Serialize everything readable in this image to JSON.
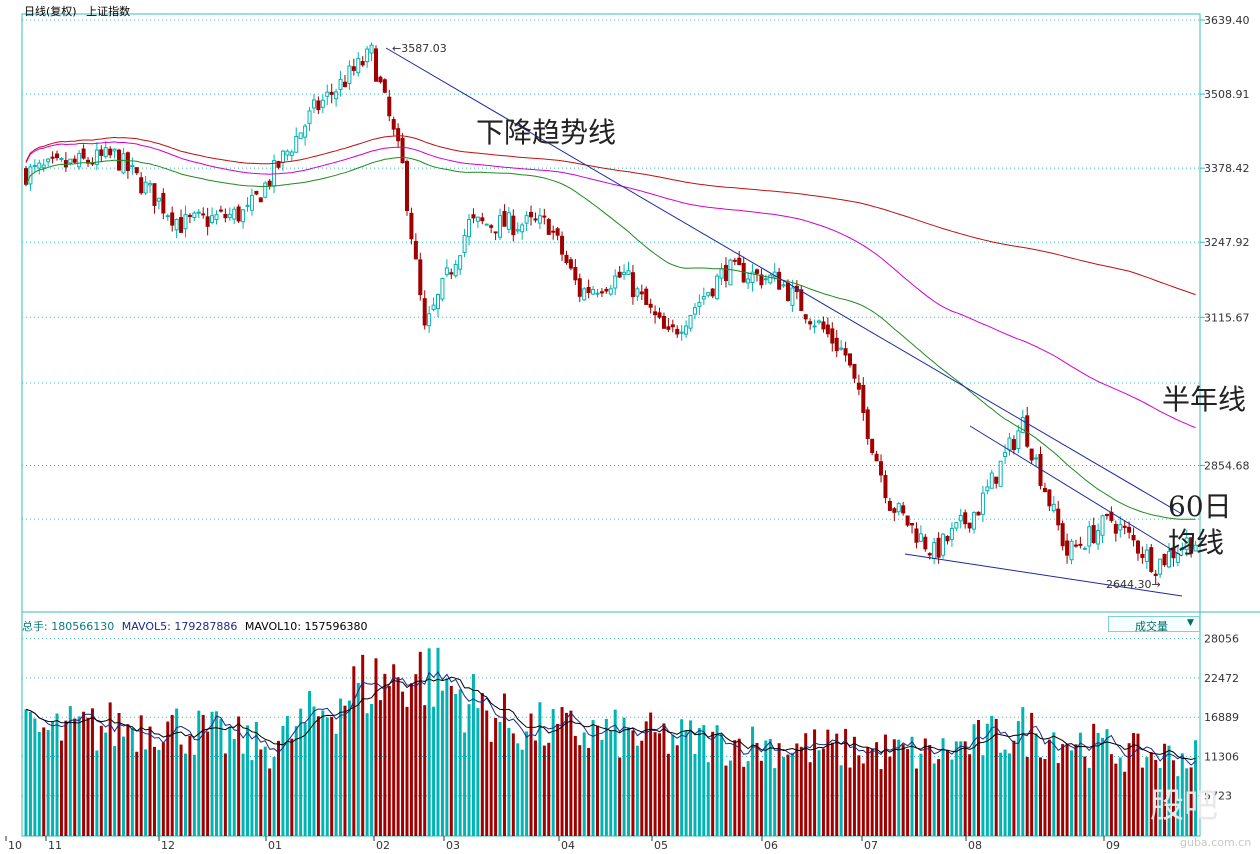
{
  "header": {
    "chart_kind": "日线(复权)",
    "index_name": "上证指数"
  },
  "volume_header": {
    "total_label": "总手",
    "total_value": "180566130",
    "mavol5_label": "MAVOL5",
    "mavol5_value": "179287886",
    "mavol10_label": "MAVOL10",
    "mavol10_value": "157596380"
  },
  "indicator_select": {
    "label": "成交量",
    "arrow": "▼"
  },
  "watermark": {
    "logo": "股吧",
    "site": "guba.com.cn"
  },
  "colors": {
    "up": "#00b4b4",
    "down": "#a00000",
    "ma_green": "#1f8a1f",
    "ma_magenta": "#d200d2",
    "ma_red": "#c01010",
    "trend": "#1a2aa0",
    "grid": "#38bcbc"
  },
  "chart_data": [
    {
      "type": "candlestick",
      "price_ticks": [
        "3639.40",
        "3508.91",
        "3378.42",
        "3247.92",
        "3115.67",
        "2854.68"
      ],
      "ylim": [
        2600,
        3650
      ],
      "months": [
        "10",
        "11",
        "12",
        "01",
        "02",
        "03",
        "04",
        "05",
        "06",
        "07",
        "08",
        "09"
      ],
      "peak_label": "3587.03",
      "trough_label": "2644.30",
      "annotations": [
        "下降趋势线",
        "半年线",
        "60日",
        "均线"
      ],
      "summary_points": [
        {
          "x": 0,
          "close": 3370
        },
        {
          "x": 20,
          "close": 3400
        },
        {
          "x": 35,
          "close": 3280
        },
        {
          "x": 50,
          "close": 3300
        },
        {
          "x": 65,
          "close": 3480
        },
        {
          "x": 78,
          "close": 3580
        },
        {
          "x": 85,
          "close": 3380
        },
        {
          "x": 90,
          "close": 3090
        },
        {
          "x": 100,
          "close": 3280
        },
        {
          "x": 118,
          "close": 3280
        },
        {
          "x": 125,
          "close": 3160
        },
        {
          "x": 135,
          "close": 3190
        },
        {
          "x": 145,
          "close": 3080
        },
        {
          "x": 158,
          "close": 3200
        },
        {
          "x": 170,
          "close": 3180
        },
        {
          "x": 185,
          "close": 3050
        },
        {
          "x": 195,
          "close": 2790
        },
        {
          "x": 205,
          "close": 2700
        },
        {
          "x": 215,
          "close": 2780
        },
        {
          "x": 225,
          "close": 2930
        },
        {
          "x": 235,
          "close": 2700
        },
        {
          "x": 245,
          "close": 2760
        },
        {
          "x": 255,
          "close": 2680
        },
        {
          "x": 262,
          "close": 2720
        }
      ]
    },
    {
      "type": "bar",
      "name": "成交量",
      "volume_ticks": [
        "28056",
        "22472",
        "16889",
        "11306",
        "5723"
      ],
      "ylim": [
        0,
        29000
      ],
      "summary_points": [
        {
          "x": 0,
          "v": 15000
        },
        {
          "x": 30,
          "v": 16500
        },
        {
          "x": 55,
          "v": 13000
        },
        {
          "x": 75,
          "v": 22000
        },
        {
          "x": 90,
          "v": 24000
        },
        {
          "x": 110,
          "v": 16000
        },
        {
          "x": 140,
          "v": 14500
        },
        {
          "x": 175,
          "v": 13000
        },
        {
          "x": 205,
          "v": 12000
        },
        {
          "x": 225,
          "v": 15500
        },
        {
          "x": 250,
          "v": 12000
        },
        {
          "x": 262,
          "v": 11500
        }
      ]
    }
  ]
}
